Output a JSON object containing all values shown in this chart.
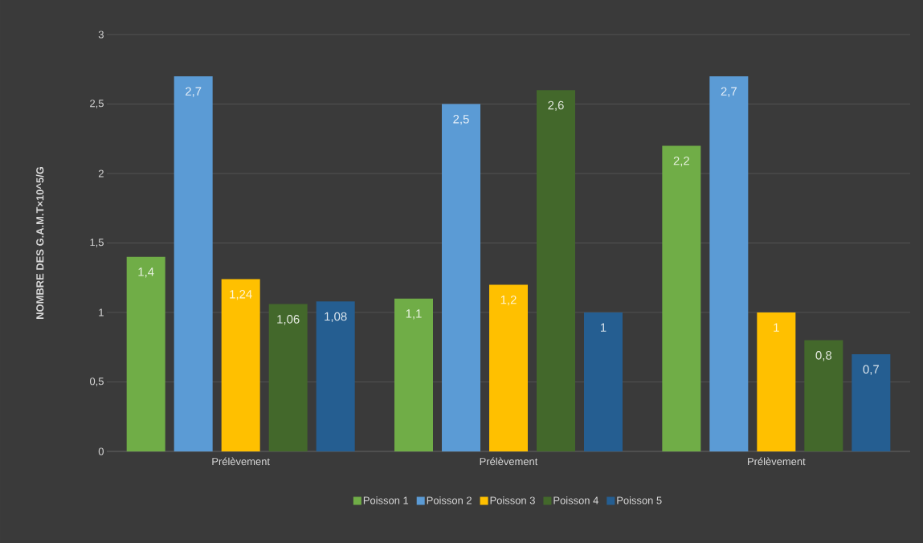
{
  "chart_data": {
    "type": "bar",
    "ylabel": "NOMBRE DES G.A.M.T×10^5/G",
    "categories": [
      "Prélèvement",
      "Prélèvement",
      "Prélèvement"
    ],
    "series": [
      {
        "name": "Poisson 1",
        "color": "#70ad47",
        "values": [
          1.4,
          1.1,
          2.2
        ],
        "value_labels": [
          "1,4",
          "1,1",
          "2,2"
        ]
      },
      {
        "name": "Poisson 2",
        "color": "#5b9bd5",
        "values": [
          2.7,
          2.5,
          2.7
        ],
        "value_labels": [
          "2,7",
          "2,5",
          "2,7"
        ]
      },
      {
        "name": "Poisson 3",
        "color": "#ffc000",
        "values": [
          1.24,
          1.2,
          1.0
        ],
        "value_labels": [
          "1,24",
          "1,2",
          "1"
        ]
      },
      {
        "name": "Poisson 4",
        "color": "#43682b",
        "values": [
          1.06,
          2.6,
          0.8
        ],
        "value_labels": [
          "1,06",
          "2,6",
          "0,8"
        ]
      },
      {
        "name": "Poisson 5",
        "color": "#255e91",
        "values": [
          1.08,
          1.0,
          0.7
        ],
        "value_labels": [
          "1,08",
          "1",
          "0,7"
        ]
      }
    ],
    "ylim": [
      0,
      3
    ],
    "yticks": [
      0,
      {
        "value": 0.5,
        "label": "0,5"
      },
      1,
      {
        "value": 1.5,
        "label": "1,5"
      },
      2,
      {
        "value": 2.5,
        "label": "2,5"
      },
      3
    ],
    "grid": "y",
    "legend": "bottom"
  }
}
